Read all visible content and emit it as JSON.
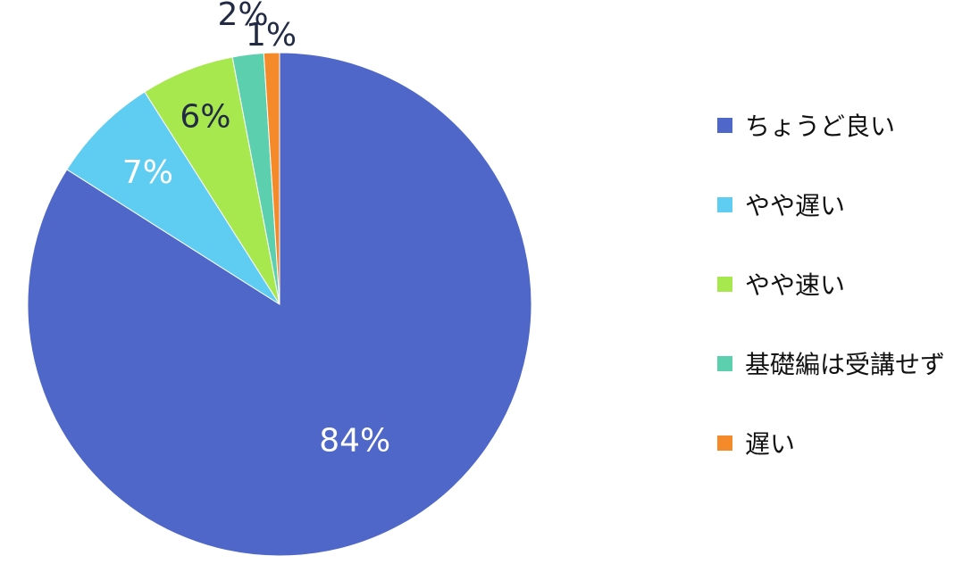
{
  "chart_data": {
    "type": "pie",
    "start_angle_deg": 0,
    "direction": "clockwise",
    "slices": [
      {
        "label": "ちょうど良い",
        "value": 84,
        "display": "84%",
        "color": "#4f67c8",
        "label_color": "#ffffff"
      },
      {
        "label": "やや遅い",
        "value": 7,
        "display": "7%",
        "color": "#5fcdf2",
        "label_color": "#ffffff"
      },
      {
        "label": "やや速い",
        "value": 6,
        "display": "6%",
        "color": "#a7e84f",
        "label_color": "#222a44"
      },
      {
        "label": "基礎編は受講せず",
        "value": 2,
        "display": "2%",
        "color": "#5ccfae",
        "label_color": "#222a44"
      },
      {
        "label": "遅い",
        "value": 1,
        "display": "1%",
        "color": "#f58a2a",
        "label_color": "#222a44"
      }
    ],
    "legend_position": "right"
  }
}
